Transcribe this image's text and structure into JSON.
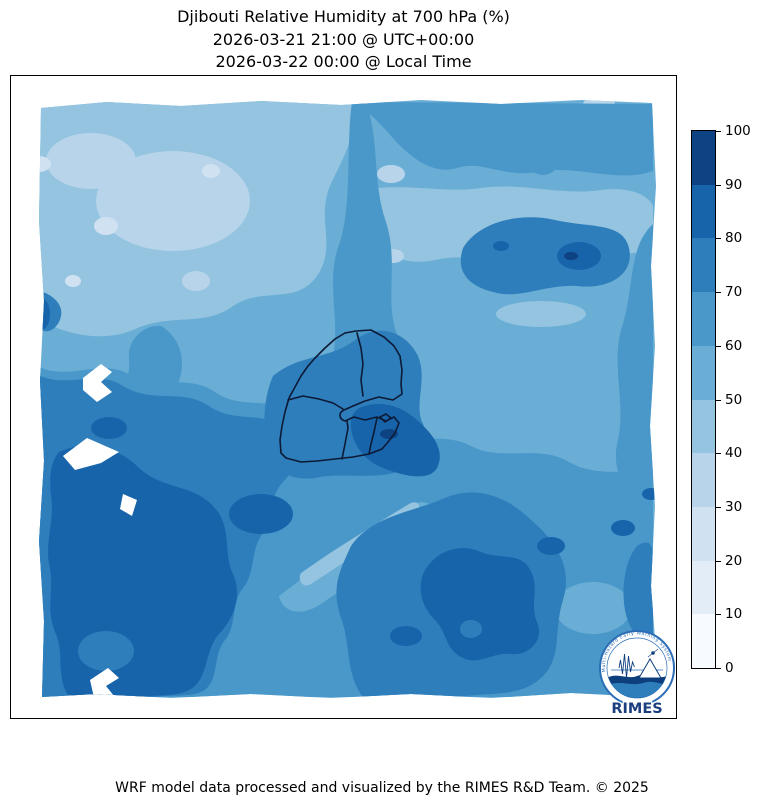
{
  "title": {
    "line1": "Djibouti Relative Humidity at 700 hPa (%)",
    "line2": "2026-03-21 21:00 @ UTC+00:00",
    "line3": "2026-03-22 00:00 @ Local Time"
  },
  "footer": {
    "credit": "WRF model data processed and visualized by the RIMES R&D Team. © 2025"
  },
  "colorbar": {
    "unit": "%",
    "ticks_low_to_high": [
      0,
      10,
      20,
      30,
      40,
      50,
      60,
      70,
      80,
      90,
      100
    ],
    "band_colors_low_to_high": [
      "#f7fbff",
      "#e2edf8",
      "#d0e1f2",
      "#b7d4ea",
      "#94c4df",
      "#6aaed6",
      "#4a98c9",
      "#2e7ebc",
      "#1864aa",
      "#0d4382"
    ]
  },
  "map": {
    "country": "Djibouti",
    "border_color": "#0c1a35",
    "lake_color": "#ffffff",
    "background_color": "#ffffff"
  },
  "logo": {
    "wordmark": "RIMES",
    "ring_text": "Multi-Hazard Early Warning System",
    "primary_color": "#2a6db5",
    "dark_color": "#0d3f7c",
    "wave_color": "#2e7ebc",
    "text_color": "#1b3f7e"
  },
  "chart_data": {
    "type": "heatmap",
    "title": "Djibouti Relative Humidity at 700 hPa (%)",
    "variable": "Relative Humidity",
    "pressure_level_hPa": 700,
    "valid_time_utc": "2026-03-21 21:00 @ UTC+00:00",
    "valid_time_local": "2026-03-22 00:00 @ Local Time",
    "value_range": [
      0,
      100
    ],
    "contour_interval": 10,
    "colormap": "Blues (10 discrete bands)",
    "legend_position": "right",
    "notes": "Filled-contour relative humidity field over the Horn of Africa with Djibouti admin boundaries; humid (dark blue 70-90%) southwest and south-center, drier (30-50%) northwest and northeast; white gaps are lakes/no-data cells"
  }
}
